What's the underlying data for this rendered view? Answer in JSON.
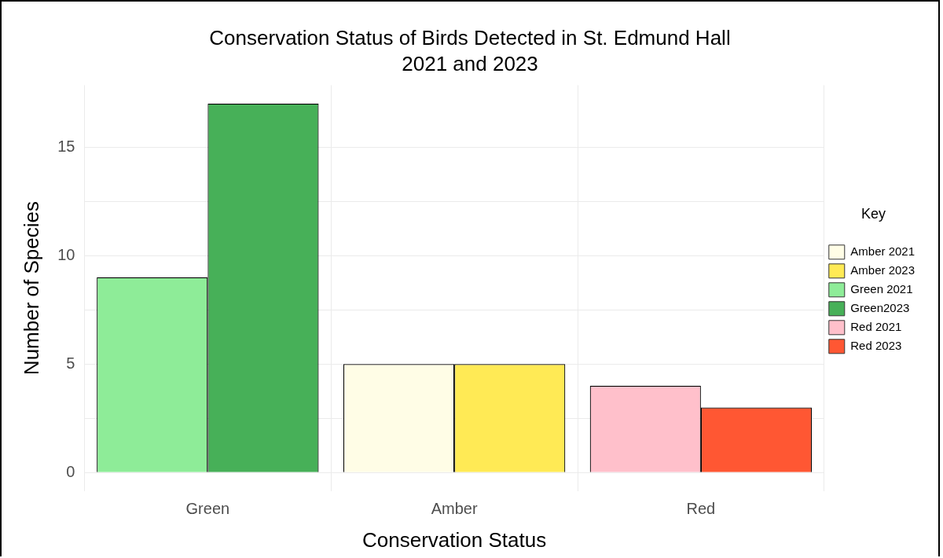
{
  "chart_data": {
    "type": "bar",
    "title": "Conservation Status of Birds Detected in St. Edmund Hall",
    "subtitle": "2021 and 2023",
    "xlabel": "Conservation Status",
    "ylabel": "Number of Species",
    "legend_title": "Key",
    "categories": [
      "Green",
      "Amber",
      "Red"
    ],
    "series": [
      {
        "name": "Amber 2021",
        "color": "#fffde6",
        "values": [
          null,
          5,
          null
        ]
      },
      {
        "name": "Amber 2023",
        "color": "#ffea55",
        "values": [
          null,
          5,
          null
        ]
      },
      {
        "name": "Green 2021",
        "color": "#8eec98",
        "values": [
          9,
          null,
          null
        ]
      },
      {
        "name": "Green2023",
        "color": "#47b058",
        "values": [
          17,
          null,
          null
        ]
      },
      {
        "name": "Red 2021",
        "color": "#ffc0cb",
        "values": [
          null,
          null,
          4
        ]
      },
      {
        "name": "Red 2023",
        "color": "#ff5733",
        "values": [
          null,
          null,
          3
        ]
      }
    ],
    "ylim": [
      -0.85,
      17.85
    ],
    "yticks": [
      0,
      {
        "value": 2.5,
        "label": null
      },
      5,
      {
        "value": 7.5,
        "label": null
      },
      10,
      {
        "value": 12.5,
        "label": null
      },
      15
    ],
    "grid": true,
    "legend": "right"
  }
}
